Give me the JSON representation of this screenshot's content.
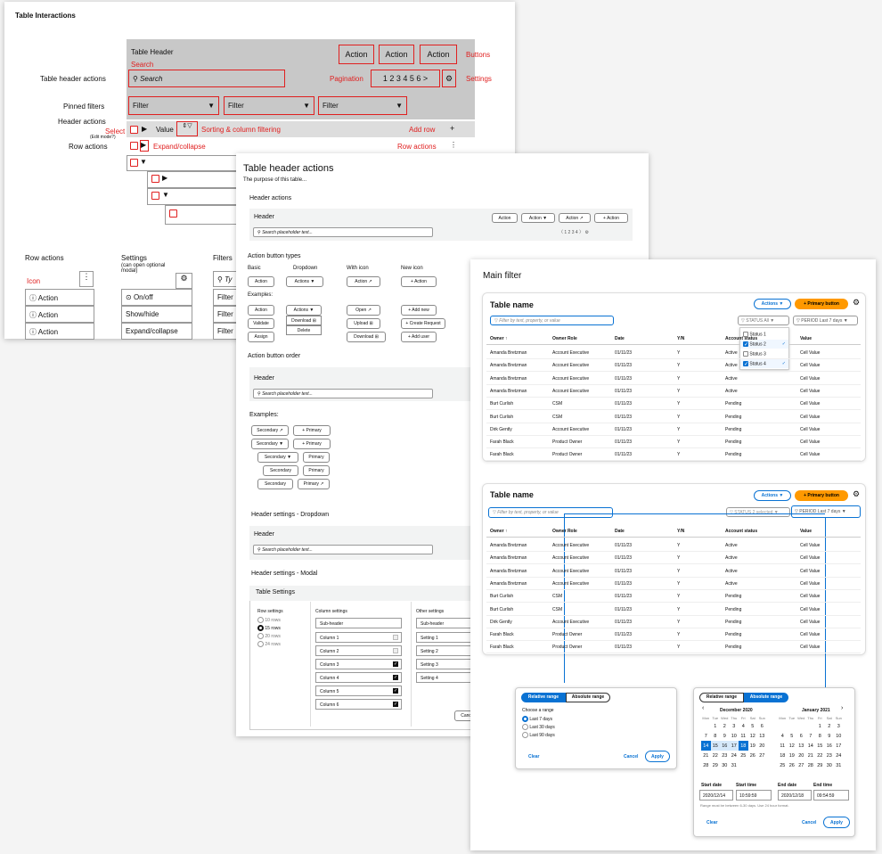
{
  "board1": {
    "title": "Table Interactions",
    "table_header": "Table Header",
    "actions": [
      "Action",
      "Action",
      "Action"
    ],
    "buttons_label": "Buttons",
    "search_label": "Search",
    "search_placeholder": "Search",
    "table_header_actions": "Table header actions",
    "pagination_label": "Pagination",
    "pagination": "1 2 3 4 5 6 >",
    "settings_label": "Settings",
    "pinned_filters": "Pinned filters",
    "filter": "Filter",
    "header_actions": "Header actions",
    "select": "Select",
    "edit_mode": "(Edit mode?)",
    "value": "Value",
    "sorting": "Sorting & column filtering",
    "add_row": "Add row",
    "row_actions": "Row actions",
    "expand_collapse": "Expand/collapse",
    "row_actions_red": "Row actions",
    "row_actions_title": "Row actions",
    "icon": "Icon",
    "action_items": [
      "Action",
      "Action",
      "Action"
    ],
    "settings_title": "Settings",
    "settings_sub": "(can open optional modal)",
    "settings_items": [
      "On/off",
      "Show/hide",
      "Expand/collapse"
    ],
    "filters_title": "Filters",
    "filters_search": "Ty",
    "filter_items": [
      "Filter",
      "Filter",
      "Filter"
    ]
  },
  "board2": {
    "title": "Table header actions",
    "subtitle": "The purpose of this table...",
    "header_actions": "Header actions",
    "header": "Header",
    "btns": [
      "Action",
      "Action ▼",
      "Action ↗",
      "+ Action"
    ],
    "search_ph": "Search placeholder text...",
    "pages": "1 2 3 4",
    "types_title": "Action button types",
    "col_basic": "Basic",
    "col_dropdown": "Dropdown",
    "col_withicon": "With icon",
    "col_newicon": "New icon",
    "basic": "Action",
    "dropdown": "Actions ▼",
    "withicon": "Action ↗",
    "newicon": "+ Action",
    "examples": "Examples:",
    "ex_basic": [
      "Action",
      "Validate",
      "Assign"
    ],
    "ex_dropdown": [
      "Actions ▼",
      "Download ⊞",
      "Delete"
    ],
    "ex_icon": [
      "Open ↗",
      "Upload ⊞",
      "Download ⊞"
    ],
    "ex_new": [
      "+ Add new",
      "+ Create Request",
      "+ Add user"
    ],
    "order_title": "Action button order",
    "order_header": "Header",
    "order_ph": "Search placeholder text...",
    "examples2": "Examples:",
    "order_rows": [
      [
        "Secondary ↗",
        "+ Primary"
      ],
      [
        "Secondary ▼",
        "+ Primary"
      ],
      [
        "Secondary ▼",
        "Primary"
      ],
      [
        "Secondary",
        "Primary"
      ],
      [
        "Secondary",
        "Primary ↗"
      ]
    ],
    "dd_title": "Header settings - Dropdown",
    "dd_header": "Header",
    "dd_ph": "Search placeholder text...",
    "modal_title": "Header settings - Modal",
    "ts": "Table Settings",
    "row_settings": "Row settings",
    "rows": [
      "10 rows",
      "15 rows",
      "20 rows",
      "24 rows"
    ],
    "col_settings": "Column settings",
    "sub_header": "Sub-header",
    "columns": [
      "Column 1",
      "Column 2",
      "Column 3",
      "Column 4",
      "Column 5",
      "Column 6"
    ],
    "other_settings": "Other settings",
    "other_sub": "Sub-header",
    "settings": [
      "Setting 1",
      "Setting 2",
      "Setting 3",
      "Setting 4"
    ],
    "cancel": "Cancel"
  },
  "board3": {
    "title": "Main filter",
    "table_name": "Table name",
    "actions": "Actions ▼",
    "primary": "+ Primary button",
    "filter_ph": "Filter by text, property, or value",
    "status": "STATUS",
    "status_all": "All",
    "status_sel": "2 selected",
    "period": "PERIOD",
    "period_val": "Last 7 days",
    "cols": [
      "Owner ↑",
      "Owner Role",
      "Date",
      "Y/N",
      "Account status",
      "Value"
    ],
    "rows": [
      [
        "Amanda Bretzman",
        "Account Executive",
        "01/11/23",
        "Y",
        "Active",
        "Cell Value"
      ],
      [
        "Amanda Bretzman",
        "Account Executive",
        "01/11/23",
        "Y",
        "Active",
        "Cell Value"
      ],
      [
        "Amanda Bretzman",
        "Account Executive",
        "01/11/23",
        "Y",
        "Active",
        "Cell Value"
      ],
      [
        "Amanda Bretzman",
        "Account Executive",
        "01/11/23",
        "Y",
        "Active",
        "Cell Value"
      ],
      [
        "Burt Curlish",
        "CSM",
        "01/11/23",
        "Y",
        "Pending",
        "Cell Value"
      ],
      [
        "Burt Curlish",
        "CSM",
        "01/11/23",
        "Y",
        "Pending",
        "Cell Value"
      ],
      [
        "Dirk Gently",
        "Account Executive",
        "01/11/23",
        "Y",
        "Pending",
        "Cell Value"
      ],
      [
        "Farah Black",
        "Product Owner",
        "01/11/23",
        "Y",
        "Pending",
        "Cell Value"
      ],
      [
        "Farah Black",
        "Product Owner",
        "01/11/23",
        "Y",
        "Pending",
        "Cell Value"
      ]
    ],
    "status_opts": [
      "Status 1",
      "Status 2",
      "Status 3",
      "Status 4"
    ],
    "rel": "Relative range",
    "abs": "Absolute range",
    "choose": "Choose a range",
    "ranges": [
      "Last 7 days",
      "Last 30 days",
      "Last 90 days"
    ],
    "clear": "Clear",
    "cancel": "Cancel",
    "apply": "Apply",
    "dec": "December 2020",
    "jan": "January 2021",
    "dow": [
      "Mon",
      "Tue",
      "Wed",
      "Thu",
      "Fri",
      "Sat",
      "Sun"
    ],
    "start_date": "Start date",
    "start_time": "Start time",
    "end_date": "End date",
    "end_time": "End time",
    "sd": "2020/12/14",
    "st": "10:59:59",
    "ed": "2020/12/18",
    "et": "09:54:59",
    "hint": "Range must be between 6-30 days. Use 24 hour format."
  }
}
